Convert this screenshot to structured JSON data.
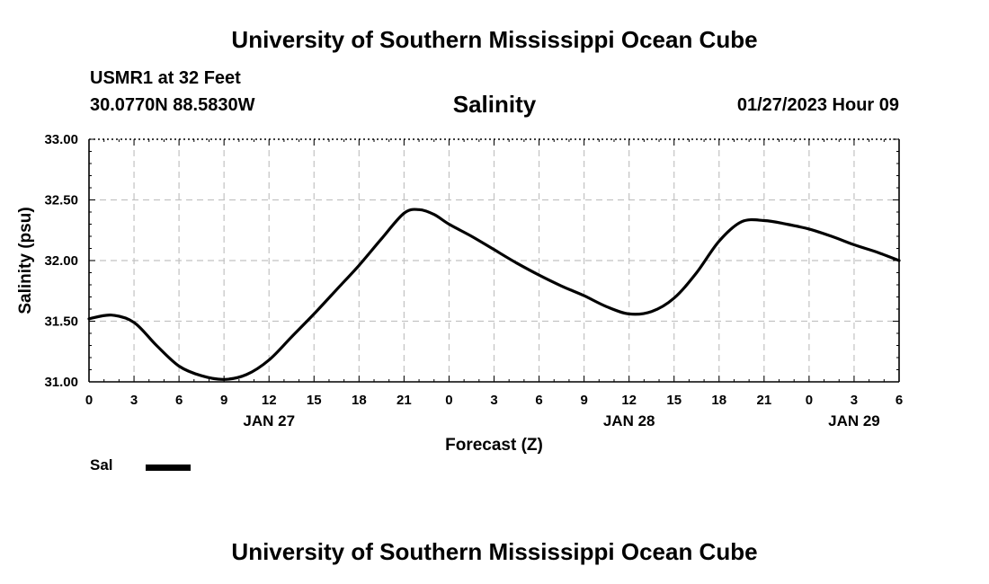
{
  "header": {
    "title": "University of Southern Mississippi Ocean Cube",
    "station": "USMR1 at 32 Feet",
    "coordinates": "30.0770N  88.5830W",
    "timestamp": "01/27/2023 Hour 09"
  },
  "footer": {
    "title": "University of Southern Mississippi Ocean Cube"
  },
  "legend": {
    "label": "Sal"
  },
  "chart_data": {
    "type": "line",
    "title": "Salinity",
    "xlabel": "Forecast (Z)",
    "ylabel": "Salinity (psu)",
    "ylim": [
      31.0,
      33.0
    ],
    "y_ticks": [
      "31.00",
      "31.50",
      "32.00",
      "32.50",
      "33.00"
    ],
    "x_tick_labels": [
      "0",
      "3",
      "6",
      "9",
      "12",
      "15",
      "18",
      "21",
      "0",
      "3",
      "6",
      "9",
      "12",
      "15",
      "18",
      "21",
      "0",
      "3",
      "6"
    ],
    "date_labels": [
      {
        "hour": 12,
        "label": "JAN 27"
      },
      {
        "hour": 36,
        "label": "JAN 28"
      },
      {
        "hour": 51,
        "label": "JAN 29"
      }
    ],
    "xlim_hours": [
      0,
      54
    ],
    "grid": true,
    "series": [
      {
        "name": "Sal",
        "color": "#000000",
        "x_hours": [
          0,
          1.5,
          3,
          4.5,
          6,
          7.5,
          9,
          10.5,
          12,
          13.5,
          15,
          16.5,
          18,
          19.5,
          21,
          22,
          23,
          24,
          25.5,
          27,
          28.5,
          30,
          31.5,
          33,
          34.5,
          36,
          37.5,
          39,
          40.5,
          42,
          43.5,
          45,
          46.5,
          48,
          49.5,
          51,
          52.5,
          54
        ],
        "values": [
          31.52,
          31.55,
          31.49,
          31.3,
          31.13,
          31.05,
          31.02,
          31.06,
          31.18,
          31.37,
          31.56,
          31.76,
          31.96,
          32.18,
          32.39,
          32.42,
          32.38,
          32.3,
          32.2,
          32.09,
          31.98,
          31.88,
          31.79,
          31.71,
          31.62,
          31.56,
          31.58,
          31.69,
          31.9,
          32.16,
          32.32,
          32.33,
          32.3,
          32.26,
          32.2,
          32.13,
          32.07,
          32.0
        ]
      }
    ]
  }
}
